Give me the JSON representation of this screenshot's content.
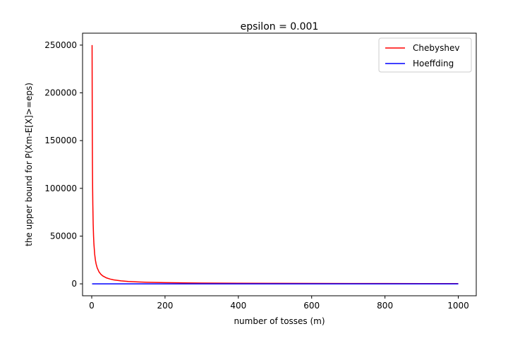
{
  "chart_data": {
    "type": "line",
    "title": "epsilon = 0.001",
    "xlabel": "number of tosses (m)",
    "ylabel": "the upper bound for P(Xm-E[X]>=eps)",
    "xlim": [
      -25,
      1049
    ],
    "ylim": [
      -12500,
      262500
    ],
    "xticks": [
      0,
      200,
      400,
      600,
      800,
      1000
    ],
    "yticks": [
      0,
      50000,
      100000,
      150000,
      200000,
      250000
    ],
    "grid": false,
    "legend_position": "top-right",
    "series": [
      {
        "name": "Chebyshev",
        "color": "#ff0000",
        "formula_hint": "1/(4*m*eps^2)",
        "x": [
          1,
          1.5,
          2,
          2.5,
          3,
          4,
          5,
          6,
          8,
          10,
          12,
          15,
          20,
          25,
          30,
          40,
          50,
          60,
          80,
          100,
          125,
          150,
          200,
          250,
          300,
          400,
          500,
          600,
          700,
          800,
          900,
          1000
        ],
        "y": [
          250000,
          166667,
          125000,
          100000,
          83333,
          62500,
          50000,
          41667,
          31250,
          25000,
          20833,
          16667,
          12500,
          10000,
          8333,
          6250,
          5000,
          4167,
          3125,
          2500,
          2000,
          1667,
          1250,
          1000,
          833,
          625,
          500,
          417,
          357,
          313,
          278,
          250
        ]
      },
      {
        "name": "Hoeffding",
        "color": "#0000ff",
        "x": [
          1,
          1000
        ],
        "y": [
          2,
          2
        ]
      }
    ]
  }
}
